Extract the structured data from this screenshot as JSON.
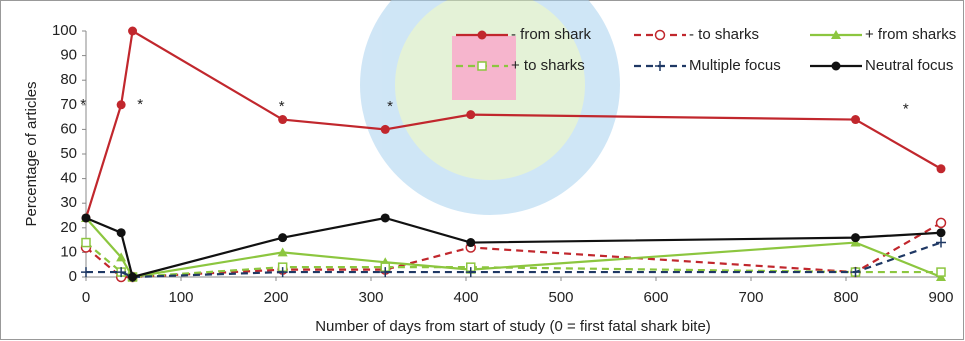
{
  "chart_data": {
    "type": "line",
    "x_label": "Number of days from start of study (0 = first fatal shark bite)",
    "y_label": "Percentage of articles",
    "xlim": [
      0,
      900
    ],
    "xticks": [
      0,
      100,
      200,
      300,
      400,
      500,
      600,
      700,
      800,
      900
    ],
    "ylim": [
      0,
      100
    ],
    "yticks": [
      0,
      10,
      20,
      30,
      40,
      50,
      60,
      70,
      80,
      90,
      100
    ],
    "x": [
      0,
      37,
      49,
      207,
      315,
      405,
      810,
      900
    ],
    "legend": "top-right",
    "series": [
      {
        "name": "- from shark",
        "color": "#c1272d",
        "dash": false,
        "marker": "circle",
        "values": [
          24,
          70,
          100,
          64,
          60,
          66,
          64,
          44
        ]
      },
      {
        "name": "- to sharks",
        "color": "#c1272d",
        "dash": true,
        "marker": "open-circle",
        "values": [
          12,
          0,
          0,
          3,
          3,
          12,
          2,
          22
        ]
      },
      {
        "name": "+ from sharks",
        "color": "#8cc63f",
        "dash": false,
        "marker": "triangle",
        "values": [
          24,
          8,
          0,
          10,
          6,
          3,
          14,
          0
        ]
      },
      {
        "name": "+ to sharks",
        "color": "#8cc63f",
        "dash": true,
        "marker": "open-square",
        "values": [
          14,
          2,
          0,
          4,
          4,
          4,
          2,
          2
        ]
      },
      {
        "name": "Multiple focus",
        "color": "#1f3864",
        "dash": true,
        "marker": "plus",
        "values": [
          2,
          2,
          0,
          2,
          2,
          2,
          2,
          14
        ]
      },
      {
        "name": "Neutral focus",
        "color": "#111111",
        "dash": false,
        "marker": "circle",
        "values": [
          24,
          18,
          0,
          16,
          24,
          14,
          16,
          18
        ]
      }
    ],
    "annotations": [
      {
        "text": "*",
        "x": -3,
        "y": 70
      },
      {
        "text": "*",
        "x": 57,
        "y": 70
      },
      {
        "text": "*",
        "x": 206,
        "y": 69
      },
      {
        "text": "*",
        "x": 320,
        "y": 69
      },
      {
        "text": "*",
        "x": 863,
        "y": 68
      }
    ]
  }
}
